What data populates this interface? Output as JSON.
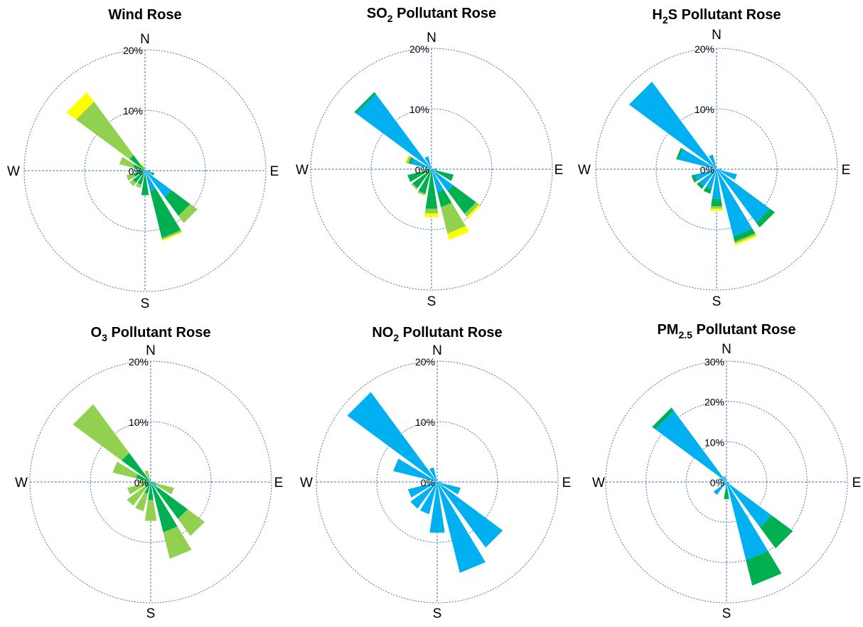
{
  "colors": {
    "grid": "#4472c4",
    "blue": "#00b0f0",
    "dark_green": "#00b050",
    "light_green": "#92d050",
    "yellow": "#ffff00"
  },
  "compass_labels": {
    "n": "N",
    "e": "E",
    "s": "S",
    "w": "W"
  },
  "chart_data": [
    {
      "type": "wind-rose",
      "title": "Wind Rose",
      "ring_labels": [
        "0%",
        "10%",
        "20%"
      ],
      "rmax": 20,
      "directions": [
        "N",
        "NNE",
        "NE",
        "ENE",
        "E",
        "ESE",
        "SE",
        "SSE",
        "S",
        "SSW",
        "SW",
        "WSW",
        "W",
        "WNW",
        "NW",
        "NNW"
      ],
      "series": [
        {
          "color": "blue",
          "values": [
            0,
            0,
            0,
            0,
            0.6,
            1.2,
            5.5,
            3.5,
            0.9,
            0.6,
            0.5,
            0.4,
            0.3,
            0.2,
            0.2,
            0
          ]
        },
        {
          "color": "dark_green",
          "values": [
            0,
            0,
            0,
            0,
            0.3,
            0.4,
            3.8,
            8.0,
            3.2,
            1.8,
            2.0,
            1.6,
            1.0,
            1.8,
            3.0,
            0
          ]
        },
        {
          "color": "light_green",
          "values": [
            0,
            0,
            0,
            0,
            0,
            0,
            1.5,
            0.3,
            0,
            0.6,
            0.7,
            1.2,
            0,
            2.4,
            11.0,
            0.8
          ]
        },
        {
          "color": "yellow",
          "values": [
            0,
            0,
            0,
            0,
            0,
            0,
            0,
            0.2,
            0,
            0,
            0,
            0,
            0,
            0,
            2.0,
            0.6
          ]
        }
      ]
    },
    {
      "type": "wind-rose",
      "title": "SO",
      "title_sub": "2",
      "title_suffix": "  Pollutant Rose",
      "ring_labels": [
        "0%",
        "10%",
        "20%"
      ],
      "rmax": 20,
      "directions": [
        "N",
        "NNE",
        "NE",
        "ENE",
        "E",
        "ESE",
        "SE",
        "SSE",
        "S",
        "SSW",
        "SW",
        "WSW",
        "W",
        "WNW",
        "NW",
        "NNW"
      ],
      "series": [
        {
          "color": "blue",
          "values": [
            0,
            0,
            0,
            0,
            0.3,
            0.8,
            4.5,
            4.0,
            0.6,
            0.4,
            0.4,
            0.3,
            0.3,
            3.5,
            15.5,
            2.2
          ]
        },
        {
          "color": "dark_green",
          "values": [
            0,
            0,
            0,
            0,
            0.6,
            3.0,
            4.7,
            2.5,
            6.0,
            3.8,
            3.5,
            3.8,
            0.5,
            0.4,
            0.4,
            0
          ]
        },
        {
          "color": "light_green",
          "values": [
            0,
            0,
            0,
            0,
            0,
            0,
            0.6,
            4.5,
            0.8,
            0.3,
            0.3,
            0,
            0,
            0.4,
            0,
            0
          ]
        },
        {
          "color": "yellow",
          "values": [
            0,
            0,
            0,
            0,
            0,
            0,
            0.4,
            1.1,
            0.6,
            0,
            0,
            0,
            0,
            0.2,
            0,
            0
          ]
        }
      ]
    },
    {
      "type": "wind-rose",
      "title": "H",
      "title_sub": "2",
      "title_suffix": "S Pollutant Rose",
      "ring_labels": [
        "0%",
        "10%",
        "20%"
      ],
      "rmax": 20,
      "directions": [
        "N",
        "NNE",
        "NE",
        "ENE",
        "E",
        "ESE",
        "SE",
        "SSE",
        "S",
        "SSW",
        "SW",
        "WSW",
        "W",
        "WNW",
        "NW",
        "NNW"
      ],
      "series": [
        {
          "color": "blue",
          "values": [
            0,
            0,
            0,
            0,
            0.8,
            3.5,
            11.0,
            11.5,
            5.0,
            3.4,
            3.5,
            3.7,
            0.8,
            6.5,
            18.0,
            2.5
          ]
        },
        {
          "color": "dark_green",
          "values": [
            0,
            0,
            0,
            0,
            0,
            0,
            1.0,
            0.9,
            1.2,
            0.8,
            0.6,
            0.6,
            0,
            0.4,
            0,
            0
          ]
        },
        {
          "color": "light_green",
          "values": [
            0,
            0,
            0,
            0,
            0,
            0,
            0,
            0.3,
            0.4,
            0,
            0,
            0,
            0,
            0,
            0,
            0
          ]
        },
        {
          "color": "yellow",
          "values": [
            0,
            0,
            0,
            0,
            0,
            0,
            0,
            0.3,
            0.4,
            0,
            0,
            0,
            0,
            0,
            0,
            0
          ]
        }
      ]
    },
    {
      "type": "wind-rose",
      "title": "O",
      "title_sub": "3",
      "title_suffix": " Pollutant Rose",
      "ring_labels": [
        "0%",
        "10%",
        "20%"
      ],
      "rmax": 20,
      "directions": [
        "N",
        "NNE",
        "NE",
        "ENE",
        "E",
        "ESE",
        "SE",
        "SSE",
        "S",
        "SSW",
        "SW",
        "WSW",
        "W",
        "WNW",
        "NW",
        "NNW"
      ],
      "series": [
        {
          "color": "blue",
          "values": [
            0,
            0,
            0,
            0,
            0,
            0,
            1.6,
            0.6,
            0,
            0,
            0,
            0,
            0,
            0,
            0,
            0
          ]
        },
        {
          "color": "dark_green",
          "values": [
            0,
            0,
            0,
            0,
            0.4,
            1.0,
            6.0,
            8.0,
            3.0,
            2.0,
            1.2,
            1.0,
            1.0,
            2.5,
            6.0,
            0
          ]
        },
        {
          "color": "light_green",
          "values": [
            0,
            0,
            0,
            0,
            0.3,
            3.0,
            3.5,
            4.5,
            3.5,
            3.0,
            3.7,
            3.0,
            1.0,
            4.0,
            10.0,
            2.0
          ]
        },
        {
          "color": "yellow",
          "values": [
            0,
            0,
            0,
            0,
            0,
            0,
            0,
            0,
            0,
            0,
            0,
            0,
            0,
            0,
            0,
            0
          ]
        }
      ]
    },
    {
      "type": "wind-rose",
      "title": "NO",
      "title_sub": "2",
      "title_suffix": " Pollutant Rose",
      "ring_labels": [
        "0%",
        "10%",
        "20%"
      ],
      "rmax": 20,
      "directions": [
        "N",
        "NNE",
        "NE",
        "ENE",
        "E",
        "ESE",
        "SE",
        "SSE",
        "S",
        "SSW",
        "SW",
        "WSW",
        "W",
        "WNW",
        "NW",
        "NNW"
      ],
      "series": [
        {
          "color": "blue",
          "values": [
            0,
            0,
            0,
            0,
            0.6,
            4.0,
            13.5,
            15.5,
            8.5,
            5.5,
            5.5,
            5.0,
            0.6,
            7.5,
            18.5,
            2.5
          ]
        },
        {
          "color": "dark_green",
          "values": [
            0,
            0,
            0,
            0,
            0,
            0,
            0,
            0,
            0,
            0,
            0,
            0,
            0,
            0,
            0,
            0
          ]
        },
        {
          "color": "light_green",
          "values": [
            0,
            0,
            0,
            0,
            0,
            0,
            0,
            0,
            0,
            0,
            0,
            0,
            0,
            0,
            0,
            0
          ]
        },
        {
          "color": "yellow",
          "values": [
            0,
            0,
            0,
            0,
            0,
            0,
            0,
            0,
            0,
            0,
            0,
            0,
            0,
            0,
            0,
            0
          ]
        }
      ]
    },
    {
      "type": "wind-rose",
      "title": "PM",
      "title_sub": "2.5",
      "title_suffix": " Pollutant Rose",
      "ring_labels": [
        "0%",
        "10%",
        "20%",
        "30%"
      ],
      "rmax": 30,
      "directions": [
        "N",
        "NNE",
        "NE",
        "ENE",
        "E",
        "ESE",
        "SE",
        "SSE",
        "S",
        "SSW",
        "SW",
        "WSW",
        "W",
        "WNW",
        "NW",
        "NNW"
      ],
      "series": [
        {
          "color": "blue",
          "values": [
            0,
            0,
            0,
            0,
            0.4,
            0.8,
            14.0,
            20.0,
            1.8,
            1.0,
            4.0,
            1.2,
            0.4,
            1.5,
            22.0,
            1.5
          ]
        },
        {
          "color": "dark_green",
          "values": [
            0,
            0,
            0,
            0,
            0,
            0,
            6.5,
            6.5,
            2.5,
            0,
            0,
            0,
            0,
            0.5,
            1.0,
            0
          ]
        },
        {
          "color": "light_green",
          "values": [
            0,
            0,
            0,
            0,
            0,
            0,
            0,
            0,
            0,
            0,
            0,
            0,
            0,
            0,
            0,
            0
          ]
        },
        {
          "color": "yellow",
          "values": [
            0,
            0,
            0,
            0,
            0,
            0,
            0,
            0,
            0,
            0,
            0,
            0,
            0,
            0,
            0,
            0
          ]
        }
      ]
    }
  ]
}
